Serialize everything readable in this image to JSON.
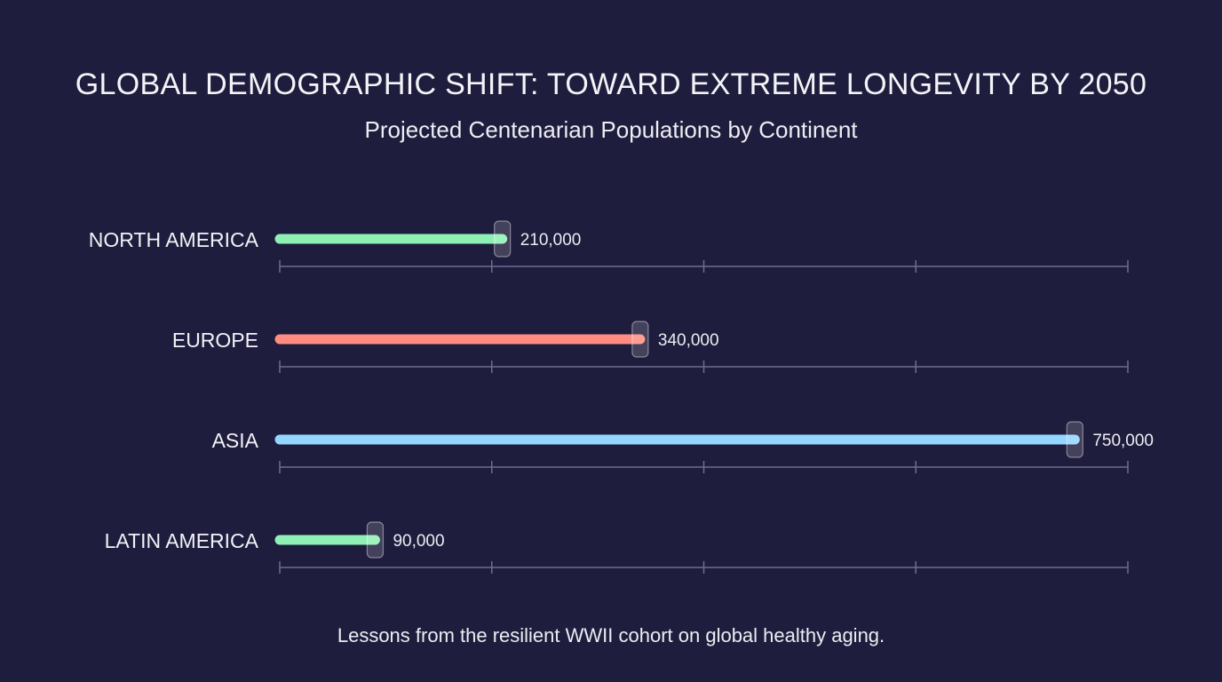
{
  "header": {
    "title": "GLOBAL DEMOGRAPHIC SHIFT: TOWARD EXTREME LONGEVITY BY 2050",
    "subtitle": "Projected Centenarian Populations by Continent"
  },
  "footer": {
    "note": "Lessons from the resilient WWII cohort on global healthy aging."
  },
  "chart_data": {
    "type": "bar",
    "orientation": "horizontal",
    "title": "GLOBAL DEMOGRAPHIC SHIFT: TOWARD EXTREME LONGEVITY BY 2050",
    "subtitle": "Projected Centenarian Populations by Continent",
    "xlim": [
      0,
      800000
    ],
    "grid": false,
    "bars": [
      {
        "category": "NORTH AMERICA",
        "value": 210000,
        "label": "210,000",
        "color": "#8ef0b4"
      },
      {
        "category": "EUROPE",
        "value": 340000,
        "label": "340,000",
        "color": "#ff8c80"
      },
      {
        "category": "ASIA",
        "value": 750000,
        "label": "750,000",
        "color": "#93d6ff"
      },
      {
        "category": "LATIN AMERICA",
        "value": 90000,
        "label": "90,000",
        "color": "#8ef0b4"
      }
    ]
  }
}
